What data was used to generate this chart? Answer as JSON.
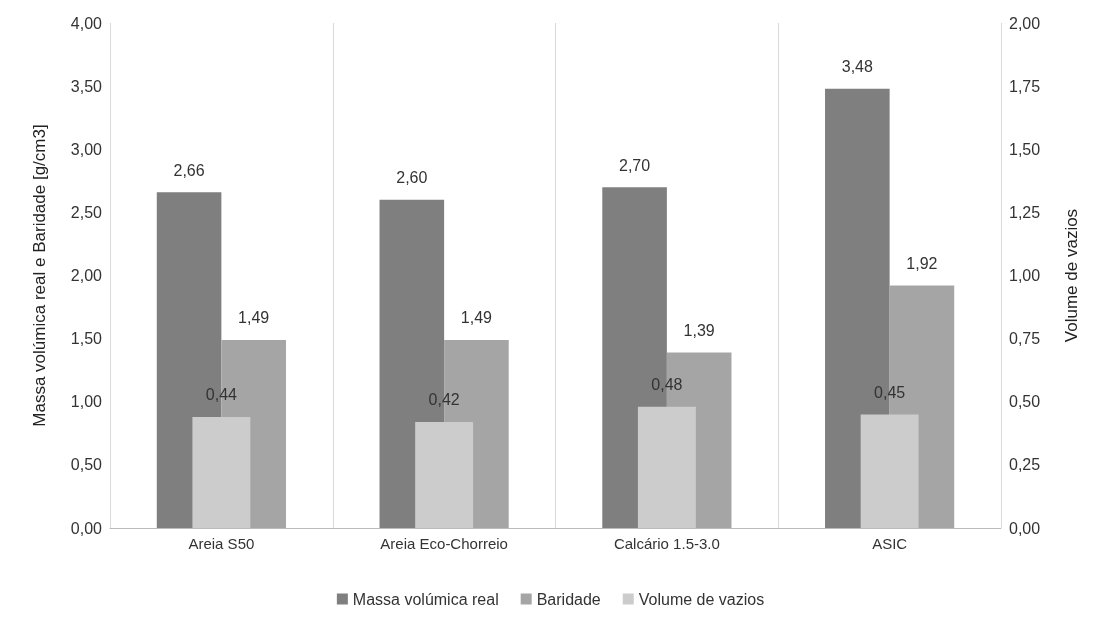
{
  "chart_data": {
    "type": "bar",
    "ylabel": "Massa volúmica real e Baridade [g/cm3]",
    "y2label": "Volume de vazios",
    "categories": [
      "Areia S50",
      "Areia Eco-Chorreio",
      "Calcário 1.5-3.0",
      "ASIC"
    ],
    "series": [
      {
        "name": "Massa volúmica real",
        "color": "#7f7f7f",
        "values": [
          2.66,
          2.6,
          2.7,
          3.48
        ],
        "value_labels": [
          "2,66",
          "2,60",
          "2,70",
          "3,48"
        ]
      },
      {
        "name": "Baridade",
        "color": "#a5a5a5",
        "values": [
          1.49,
          1.49,
          1.39,
          1.92
        ],
        "value_labels": [
          "1,49",
          "1,49",
          "1,39",
          "1,92"
        ]
      },
      {
        "name": "Volume de vazios",
        "color": "#cccccc",
        "values": [
          0.44,
          0.42,
          0.48,
          0.45
        ],
        "axis": "y2",
        "value_labels": [
          "0,44",
          "0,42",
          "0,48",
          "0,45"
        ]
      }
    ],
    "ylim": [
      0,
      4
    ],
    "yticks": [
      {
        "value": 0,
        "label": "0,00"
      },
      {
        "value": 0.5,
        "label": "0,50"
      },
      {
        "value": 1,
        "label": "1,00"
      },
      {
        "value": 1.5,
        "label": "1,50"
      },
      {
        "value": 2,
        "label": "2,00"
      },
      {
        "value": 2.5,
        "label": "2,50"
      },
      {
        "value": 3,
        "label": "3,00"
      },
      {
        "value": 3.5,
        "label": "3,50"
      },
      {
        "value": 4,
        "label": "4,00"
      }
    ],
    "y2lim": [
      0,
      2
    ],
    "y2ticks": [
      {
        "value": 0,
        "label": "0,00"
      },
      {
        "value": 0.25,
        "label": "0,25"
      },
      {
        "value": 0.5,
        "label": "0,50"
      },
      {
        "value": 0.75,
        "label": "0,75"
      },
      {
        "value": 1,
        "label": "1,00"
      },
      {
        "value": 1.25,
        "label": "1,25"
      },
      {
        "value": 1.5,
        "label": "1,50"
      },
      {
        "value": 1.75,
        "label": "1,75"
      },
      {
        "value": 2,
        "label": "2,00"
      }
    ],
    "grid": "x",
    "legend": "bottom"
  }
}
